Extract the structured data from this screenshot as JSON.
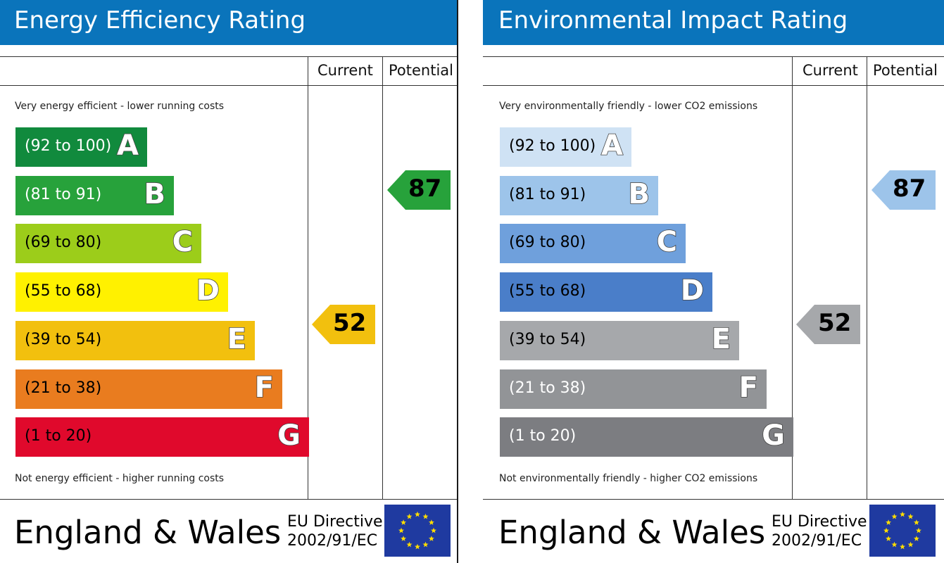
{
  "chart_data": [
    {
      "type": "bar",
      "title": "Energy Efficiency Rating",
      "columns": [
        "Current",
        "Potential"
      ],
      "top_note": "Very energy efficient - lower running costs",
      "bottom_note": "Not energy efficient - higher running costs",
      "bands": [
        {
          "range": "(92 to 100)",
          "letter": "A",
          "color": "#118a3d",
          "text_color": "#ffffff"
        },
        {
          "range": "(81 to 91)",
          "letter": "B",
          "color": "#27a23b",
          "text_color": "#ffffff"
        },
        {
          "range": "(69 to 80)",
          "letter": "C",
          "color": "#9ccd1a",
          "text_color": "#000000"
        },
        {
          "range": "(55 to 68)",
          "letter": "D",
          "color": "#fff100",
          "text_color": "#000000"
        },
        {
          "range": "(39 to 54)",
          "letter": "E",
          "color": "#f2c00e",
          "text_color": "#000000"
        },
        {
          "range": "(21 to 38)",
          "letter": "F",
          "color": "#e97c1f",
          "text_color": "#000000"
        },
        {
          "range": "(1 to 20)",
          "letter": "G",
          "color": "#e0092c",
          "text_color": "#000000"
        }
      ],
      "current": {
        "value": 52,
        "color": "#f2c00e"
      },
      "potential": {
        "value": 87,
        "color": "#27a23b"
      },
      "footer": {
        "region": "England & Wales",
        "directive_line1": "EU Directive",
        "directive_line2": "2002/91/EC"
      }
    },
    {
      "type": "bar",
      "title": "Environmental Impact Rating",
      "columns": [
        "Current",
        "Potential"
      ],
      "top_note": "Very environmentally friendly - lower CO2 emissions",
      "bottom_note": "Not environmentally friendly - higher CO2 emissions",
      "bands": [
        {
          "range": "(92 to 100)",
          "letter": "A",
          "color": "#cfe2f4",
          "text_color": "#000000"
        },
        {
          "range": "(81 to 91)",
          "letter": "B",
          "color": "#9dc4ea",
          "text_color": "#000000"
        },
        {
          "range": "(69 to 80)",
          "letter": "C",
          "color": "#6fa0dc",
          "text_color": "#000000"
        },
        {
          "range": "(55 to 68)",
          "letter": "D",
          "color": "#4a7ec9",
          "text_color": "#000000"
        },
        {
          "range": "(39 to 54)",
          "letter": "E",
          "color": "#a6a8ab",
          "text_color": "#000000"
        },
        {
          "range": "(21 to 38)",
          "letter": "F",
          "color": "#929497",
          "text_color": "#ffffff"
        },
        {
          "range": "(1 to 20)",
          "letter": "G",
          "color": "#7c7d81",
          "text_color": "#ffffff"
        }
      ],
      "current": {
        "value": 52,
        "color": "#a6a8ab"
      },
      "potential": {
        "value": 87,
        "color": "#9dc4ea"
      },
      "footer": {
        "region": "England & Wales",
        "directive_line1": "EU Directive",
        "directive_line2": "2002/91/EC"
      }
    }
  ]
}
